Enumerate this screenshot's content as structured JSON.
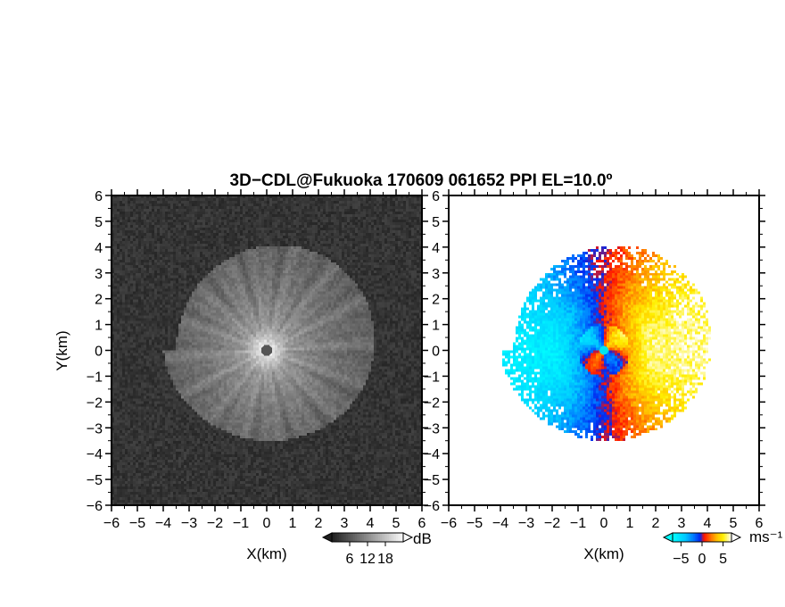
{
  "title": "3D−CDL@Fukuoka 170609 061652 PPI EL=10.0º",
  "chart_data": [
    {
      "type": "heatmap",
      "panel": "left",
      "quantity": "backscatter intensity",
      "xlabel": "X(km)",
      "ylabel": "Y(km)",
      "xlim": [
        -6,
        6
      ],
      "ylim": [
        -6,
        6
      ],
      "x_ticks": [
        -6,
        -5,
        -4,
        -3,
        -2,
        -1,
        0,
        1,
        2,
        3,
        4,
        5,
        6
      ],
      "y_ticks": [
        -6,
        -5,
        -4,
        -3,
        -2,
        -1,
        0,
        1,
        2,
        3,
        4,
        5,
        6
      ],
      "x_tick_labels": [
        "−6",
        "−5",
        "−4",
        "−3",
        "−2",
        "−1",
        "0",
        "1",
        "2",
        "3",
        "4",
        "5",
        "6"
      ],
      "y_tick_labels": [
        "−6",
        "−5",
        "−4",
        "−3",
        "−2",
        "−1",
        "0",
        "1",
        "2",
        "3",
        "4",
        "5",
        "6"
      ],
      "colormap": "grayscale",
      "colorbar": {
        "unit": "dB",
        "ticks": [
          6,
          12,
          18
        ],
        "tick_labels": [
          "6",
          "12",
          "18"
        ],
        "range": [
          0,
          24
        ]
      },
      "echo_max_radius_km": 4.5,
      "grid": false
    },
    {
      "type": "heatmap",
      "panel": "right",
      "quantity": "radial velocity",
      "xlabel": "X(km)",
      "ylabel": "",
      "xlim": [
        -6,
        6
      ],
      "ylim": [
        -6,
        6
      ],
      "x_ticks": [
        -6,
        -5,
        -4,
        -3,
        -2,
        -1,
        0,
        1,
        2,
        3,
        4,
        5,
        6
      ],
      "y_ticks": [
        -6,
        -5,
        -4,
        -3,
        -2,
        -1,
        0,
        1,
        2,
        3,
        4,
        5,
        6
      ],
      "x_tick_labels": [
        "−6",
        "−5",
        "−4",
        "−3",
        "−2",
        "−1",
        "0",
        "1",
        "2",
        "3",
        "4",
        "5",
        "6"
      ],
      "y_tick_labels": [
        "−6",
        "−5",
        "−4",
        "−3",
        "−2",
        "−1",
        "0",
        "1",
        "2",
        "3",
        "4",
        "5",
        "6"
      ],
      "colormap": "diverging: cyan-blue (negative) to red-orange-yellow (positive)",
      "colorbar": {
        "unit": "ms⁻¹",
        "ticks": [
          -5,
          0,
          5
        ],
        "tick_labels": [
          "−5",
          "0",
          "5"
        ],
        "range": [
          -7,
          7
        ]
      },
      "echo_max_radius_km": 4.5,
      "grid": false
    }
  ],
  "colors": {
    "background": "#ffffff",
    "frame": "#000000",
    "velocity_scale": [
      "#00ffff",
      "#00aaff",
      "#0044ff",
      "#ff0000",
      "#ff8800",
      "#ffee00",
      "#ffffff"
    ]
  }
}
